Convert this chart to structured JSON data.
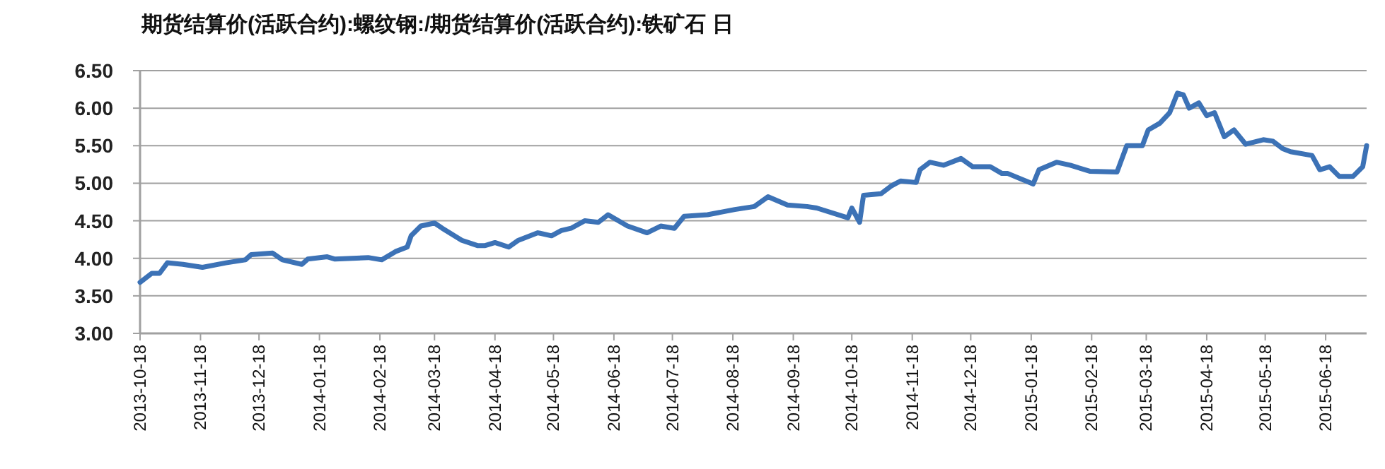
{
  "chart_data": {
    "type": "line",
    "title": "期货结算价(活跃合约):螺纹钢:/期货结算价(活跃合约):铁矿石 日",
    "x": [
      "2013-10-18",
      "2013-10-24",
      "2013-10-28",
      "2013-11-01",
      "2013-11-09",
      "2013-11-19",
      "2013-12-01",
      "2013-12-11",
      "2013-12-14",
      "2013-12-25",
      "2013-12-30",
      "2014-01-09",
      "2014-01-12",
      "2014-01-22",
      "2014-01-26",
      "2014-02-12",
      "2014-02-19",
      "2014-02-26",
      "2014-03-04",
      "2014-03-06",
      "2014-03-11",
      "2014-03-18",
      "2014-03-22",
      "2014-04-01",
      "2014-04-09",
      "2014-04-13",
      "2014-04-18",
      "2014-04-25",
      "2014-04-30",
      "2014-05-10",
      "2014-05-17",
      "2014-05-22",
      "2014-05-27",
      "2014-06-03",
      "2014-06-10",
      "2014-06-15",
      "2014-06-25",
      "2014-07-05",
      "2014-07-12",
      "2014-07-19",
      "2014-07-24",
      "2014-08-05",
      "2014-08-19",
      "2014-08-29",
      "2014-09-05",
      "2014-09-15",
      "2014-09-25",
      "2014-09-30",
      "2014-10-16",
      "2014-10-18",
      "2014-10-22",
      "2014-10-24",
      "2014-11-02",
      "2014-11-07",
      "2014-11-12",
      "2014-11-20",
      "2014-11-22",
      "2014-11-27",
      "2014-12-04",
      "2014-12-13",
      "2014-12-19",
      "2014-12-28",
      "2015-01-03",
      "2015-01-06",
      "2015-01-19",
      "2015-01-22",
      "2015-01-31",
      "2015-02-07",
      "2015-02-17",
      "2015-03-03",
      "2015-03-08",
      "2015-03-16",
      "2015-03-19",
      "2015-03-25",
      "2015-03-30",
      "2015-04-03",
      "2015-04-06",
      "2015-04-09",
      "2015-04-14",
      "2015-04-18",
      "2015-04-22",
      "2015-04-27",
      "2015-05-02",
      "2015-05-08",
      "2015-05-17",
      "2015-05-22",
      "2015-05-27",
      "2015-05-31",
      "2015-06-11",
      "2015-06-15",
      "2015-06-20",
      "2015-06-25",
      "2015-07-02",
      "2015-07-07",
      "2015-07-09"
    ],
    "series": [
      {
        "color": "#3c72b6",
        "values": [
          3.68,
          3.8,
          3.8,
          3.94,
          3.92,
          3.88,
          3.94,
          3.98,
          4.05,
          4.07,
          3.98,
          3.92,
          3.99,
          4.02,
          3.99,
          4.01,
          3.98,
          4.09,
          4.15,
          4.3,
          4.43,
          4.47,
          4.4,
          4.24,
          4.17,
          4.17,
          4.21,
          4.15,
          4.24,
          4.34,
          4.3,
          4.37,
          4.4,
          4.5,
          4.48,
          4.58,
          4.43,
          4.34,
          4.43,
          4.4,
          4.56,
          4.58,
          4.65,
          4.69,
          4.82,
          4.71,
          4.69,
          4.67,
          4.54,
          4.67,
          4.48,
          4.84,
          4.86,
          4.96,
          5.03,
          5.01,
          5.18,
          5.28,
          5.24,
          5.33,
          5.22,
          5.22,
          5.13,
          5.13,
          4.99,
          5.18,
          5.28,
          5.24,
          5.16,
          5.15,
          5.5,
          5.5,
          5.71,
          5.8,
          5.94,
          6.2,
          6.18,
          6.0,
          6.07,
          5.9,
          5.94,
          5.62,
          5.71,
          5.52,
          5.58,
          5.56,
          5.46,
          5.42,
          5.37,
          5.18,
          5.22,
          5.09,
          5.09,
          5.22,
          5.5
        ]
      }
    ],
    "xlim": [
      "2013-10-18",
      "2015-07-09"
    ],
    "xticks": [
      "2013-10-18",
      "2013-11-18",
      "2013-12-18",
      "2014-01-18",
      "2014-02-18",
      "2014-03-18",
      "2014-04-18",
      "2014-05-18",
      "2014-06-18",
      "2014-07-18",
      "2014-08-18",
      "2014-09-18",
      "2014-10-18",
      "2014-11-18",
      "2014-12-18",
      "2015-01-18",
      "2015-02-18",
      "2015-03-18",
      "2015-04-18",
      "2015-05-18",
      "2015-06-18"
    ],
    "ylim": [
      3.0,
      6.5
    ],
    "yticks": [
      {
        "value": 3.0,
        "label": "3.00"
      },
      {
        "value": 3.5,
        "label": "3.50"
      },
      {
        "value": 4.0,
        "label": "4.00"
      },
      {
        "value": 4.5,
        "label": "4.50"
      },
      {
        "value": 5.0,
        "label": "5.00"
      },
      {
        "value": 5.5,
        "label": "5.50"
      },
      {
        "value": 6.0,
        "label": "6.00"
      },
      {
        "value": 6.5,
        "label": "6.50"
      }
    ],
    "grid": "y",
    "marker": "none",
    "line_style": "solid"
  }
}
